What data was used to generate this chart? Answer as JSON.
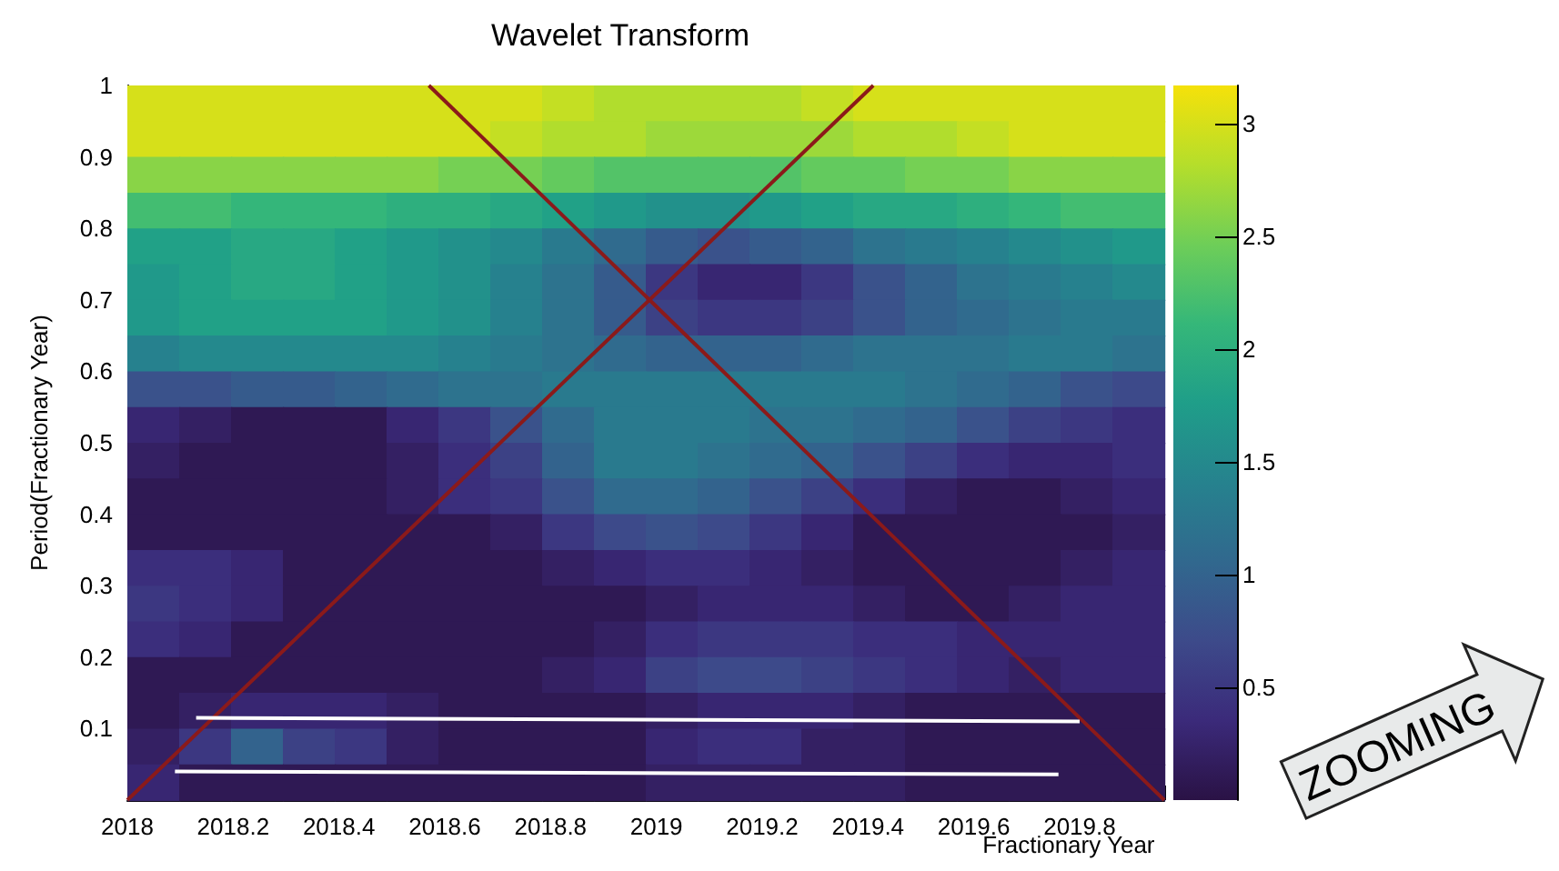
{
  "chart_data": {
    "type": "heatmap",
    "title": "Wavelet Transform",
    "xlabel": "Fractionary Year",
    "ylabel": "Period(Fractionary Year)",
    "annotations": [
      "ZOOMING"
    ],
    "x": [
      2018.049,
      2018.147,
      2018.245,
      2018.343,
      2018.441,
      2018.539,
      2018.637,
      2018.735,
      2018.833,
      2018.931,
      2019.029,
      2019.127,
      2019.225,
      2019.323,
      2019.421,
      2019.519,
      2019.617,
      2019.715,
      2019.813,
      2019.911
    ],
    "y": [
      0.975,
      0.925,
      0.875,
      0.825,
      0.775,
      0.725,
      0.675,
      0.625,
      0.575,
      0.525,
      0.475,
      0.425,
      0.375,
      0.325,
      0.275,
      0.225,
      0.175,
      0.125,
      0.075,
      0.025
    ],
    "cells": [
      [
        3.0,
        3.0,
        3.0,
        3.0,
        3.0,
        3.0,
        3.0,
        3.0,
        2.9,
        2.8,
        2.8,
        2.8,
        2.8,
        2.9,
        3.0,
        3.0,
        3.0,
        3.0,
        3.0,
        3.0
      ],
      [
        3.0,
        3.0,
        3.0,
        3.0,
        3.0,
        3.0,
        3.0,
        2.9,
        2.8,
        2.8,
        2.7,
        2.7,
        2.7,
        2.7,
        2.8,
        2.8,
        2.9,
        3.0,
        3.0,
        3.0
      ],
      [
        2.6,
        2.6,
        2.6,
        2.6,
        2.6,
        2.6,
        2.5,
        2.5,
        2.4,
        2.3,
        2.3,
        2.3,
        2.3,
        2.4,
        2.4,
        2.5,
        2.5,
        2.6,
        2.6,
        2.6
      ],
      [
        2.2,
        2.2,
        2.1,
        2.1,
        2.1,
        2.0,
        2.0,
        1.9,
        1.8,
        1.7,
        1.6,
        1.6,
        1.7,
        1.8,
        1.9,
        1.9,
        2.0,
        2.1,
        2.2,
        2.2
      ],
      [
        1.8,
        1.8,
        1.9,
        1.9,
        1.8,
        1.7,
        1.6,
        1.5,
        1.3,
        1.1,
        0.9,
        0.8,
        0.9,
        1.0,
        1.2,
        1.3,
        1.4,
        1.5,
        1.6,
        1.7
      ],
      [
        1.7,
        1.8,
        1.9,
        1.9,
        1.8,
        1.7,
        1.6,
        1.4,
        1.2,
        0.9,
        0.5,
        0.3,
        0.3,
        0.5,
        0.8,
        1.0,
        1.2,
        1.3,
        1.4,
        1.5
      ],
      [
        1.7,
        1.8,
        1.8,
        1.8,
        1.8,
        1.7,
        1.6,
        1.4,
        1.2,
        0.9,
        0.6,
        0.5,
        0.5,
        0.6,
        0.8,
        1.0,
        1.1,
        1.2,
        1.3,
        1.3
      ],
      [
        1.4,
        1.5,
        1.5,
        1.5,
        1.5,
        1.5,
        1.4,
        1.3,
        1.2,
        1.1,
        1.0,
        1.0,
        1.0,
        1.1,
        1.2,
        1.2,
        1.2,
        1.3,
        1.3,
        1.2
      ],
      [
        0.8,
        0.8,
        0.9,
        0.9,
        1.0,
        1.1,
        1.2,
        1.2,
        1.3,
        1.3,
        1.3,
        1.3,
        1.3,
        1.3,
        1.3,
        1.2,
        1.1,
        1.0,
        0.8,
        0.7
      ],
      [
        0.3,
        0.2,
        0.1,
        0.1,
        0.1,
        0.3,
        0.5,
        0.8,
        1.1,
        1.3,
        1.3,
        1.3,
        1.2,
        1.2,
        1.1,
        1.0,
        0.8,
        0.6,
        0.5,
        0.4
      ],
      [
        0.2,
        0.1,
        0.1,
        0.1,
        0.1,
        0.2,
        0.4,
        0.6,
        1.0,
        1.3,
        1.3,
        1.2,
        1.1,
        1.0,
        0.8,
        0.6,
        0.4,
        0.3,
        0.3,
        0.4
      ],
      [
        0.1,
        0.1,
        0.1,
        0.1,
        0.1,
        0.2,
        0.4,
        0.5,
        0.8,
        1.1,
        1.1,
        1.0,
        0.8,
        0.6,
        0.4,
        0.2,
        0.1,
        0.1,
        0.2,
        0.3
      ],
      [
        0.1,
        0.1,
        0.1,
        0.1,
        0.1,
        0.1,
        0.1,
        0.2,
        0.5,
        0.7,
        0.8,
        0.7,
        0.5,
        0.3,
        0.1,
        0.1,
        0.1,
        0.1,
        0.1,
        0.2
      ],
      [
        0.4,
        0.4,
        0.3,
        0.1,
        0.1,
        0.1,
        0.1,
        0.1,
        0.2,
        0.3,
        0.4,
        0.4,
        0.3,
        0.2,
        0.1,
        0.1,
        0.1,
        0.1,
        0.2,
        0.3
      ],
      [
        0.5,
        0.4,
        0.3,
        0.1,
        0.1,
        0.1,
        0.1,
        0.1,
        0.1,
        0.1,
        0.2,
        0.3,
        0.3,
        0.3,
        0.2,
        0.1,
        0.1,
        0.2,
        0.3,
        0.3
      ],
      [
        0.4,
        0.3,
        0.1,
        0.1,
        0.1,
        0.1,
        0.1,
        0.1,
        0.1,
        0.2,
        0.4,
        0.5,
        0.5,
        0.5,
        0.4,
        0.4,
        0.3,
        0.3,
        0.3,
        0.3
      ],
      [
        0.1,
        0.1,
        0.1,
        0.1,
        0.1,
        0.1,
        0.1,
        0.1,
        0.2,
        0.3,
        0.6,
        0.7,
        0.7,
        0.6,
        0.5,
        0.4,
        0.3,
        0.2,
        0.3,
        0.3
      ],
      [
        0.1,
        0.2,
        0.3,
        0.3,
        0.3,
        0.2,
        0.1,
        0.1,
        0.1,
        0.1,
        0.2,
        0.3,
        0.3,
        0.3,
        0.2,
        0.1,
        0.1,
        0.1,
        0.1,
        0.1
      ],
      [
        0.2,
        0.5,
        1.0,
        0.6,
        0.5,
        0.2,
        0.1,
        0.1,
        0.1,
        0.1,
        0.3,
        0.4,
        0.4,
        0.2,
        0.2,
        0.1,
        0.1,
        0.1,
        0.1,
        0.1
      ],
      [
        0.3,
        0.1,
        0.1,
        0.1,
        0.1,
        0.1,
        0.1,
        0.1,
        0.1,
        0.1,
        0.2,
        0.2,
        0.2,
        0.2,
        0.2,
        0.1,
        0.1,
        0.1,
        0.1,
        0.1
      ]
    ],
    "series": [
      {
        "type": "line",
        "color": "#8b1a1a",
        "x": [
          2018.0,
          2019.41
        ],
        "values": [
          0.0,
          1.0
        ]
      },
      {
        "type": "line",
        "color": "#8b1a1a",
        "x": [
          2018.57,
          2019.96
        ],
        "values": [
          1.0,
          0.0
        ]
      },
      {
        "type": "line",
        "color": "#ffffff",
        "x": [
          2018.13,
          2019.8
        ],
        "values": [
          0.115,
          0.11
        ]
      },
      {
        "type": "line",
        "color": "#ffffff",
        "x": [
          2018.09,
          2019.76
        ],
        "values": [
          0.04,
          0.036
        ]
      }
    ],
    "xlim": [
      2018,
      2019.96
    ],
    "xticks": [
      2018,
      2018.2,
      2018.4,
      2018.6,
      2018.8,
      2019,
      2019.2,
      2019.4,
      2019.6,
      2019.8
    ],
    "ylim": [
      0,
      1
    ],
    "yticks": [
      0.1,
      0.2,
      0.3,
      0.4,
      0.5,
      0.6,
      0.7,
      0.8,
      0.9,
      1
    ],
    "clim": [
      0,
      3.17
    ],
    "cticks": [
      0.5,
      1,
      1.5,
      2,
      2.5,
      3
    ]
  }
}
